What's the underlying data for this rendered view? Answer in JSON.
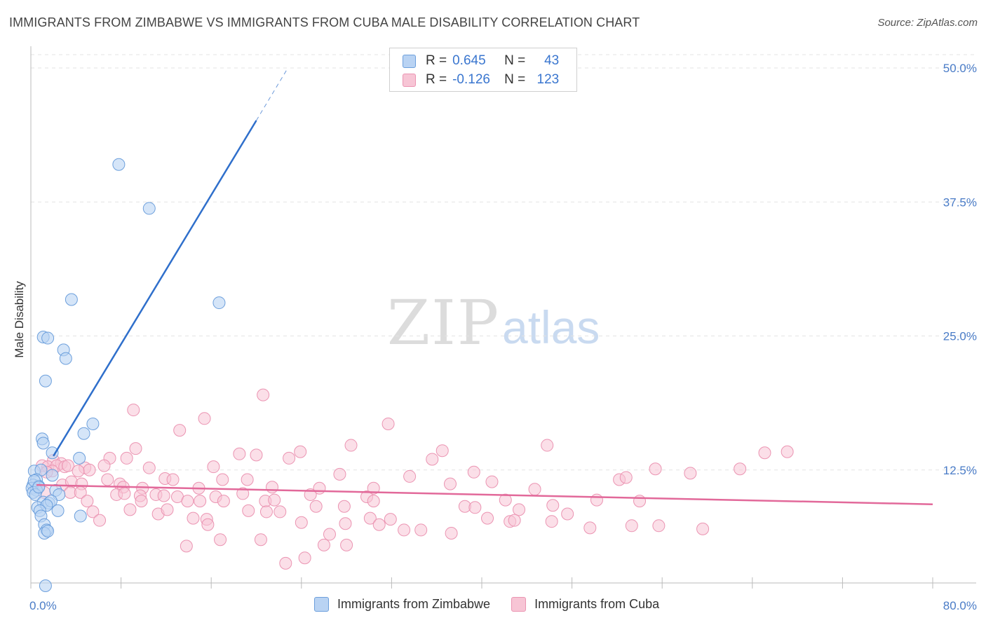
{
  "header": {
    "title": "IMMIGRANTS FROM ZIMBABWE VS IMMIGRANTS FROM CUBA MALE DISABILITY CORRELATION CHART",
    "source": "Source: ZipAtlas.com"
  },
  "watermark": {
    "zip": "ZIP",
    "atlas": "atlas"
  },
  "legend": {
    "r_label": "R =",
    "n_label": "N =",
    "rows": [
      {
        "r": "0.645",
        "n": "43"
      },
      {
        "r": "-0.126",
        "n": "123"
      }
    ]
  },
  "bottom_legend": {
    "items": [
      "Immigrants from Zimbabwe",
      "Immigrants from Cuba"
    ]
  },
  "colors": {
    "zimbabwe_fill": "#b9d3f3",
    "zimbabwe_stroke": "#6c9fdc",
    "zimbabwe_line": "#2f6fcb",
    "cuba_fill": "#f7c5d5",
    "cuba_stroke": "#eb94b2",
    "cuba_line": "#e2699a",
    "grid": "#e3e3e3",
    "tick_text": "#4a7cc7"
  },
  "chart_data": {
    "type": "scatter",
    "title": "IMMIGRANTS FROM ZIMBABWE VS IMMIGRANTS FROM CUBA MALE DISABILITY CORRELATION CHART",
    "xlabel": "",
    "ylabel": "Male Disability",
    "xlim": [
      0,
      80
    ],
    "ylim": [
      0,
      50
    ],
    "x_tick_labels": [
      "0.0%",
      "80.0%"
    ],
    "y_ticks": [
      12.5,
      25.0,
      37.5,
      50.0
    ],
    "y_tick_labels": [
      "12.5%",
      "25.0%",
      "37.5%",
      "50.0%"
    ],
    "grid": "horizontal dashed",
    "legend_position": "top-center",
    "series": [
      {
        "name": "Immigrants from Zimbabwe",
        "r": 0.645,
        "n": 43,
        "trend": {
          "x": [
            2.0,
            20.0
          ],
          "y": [
            13.8,
            45.1
          ],
          "dashed_extension_x": [
            20.0,
            22.8
          ],
          "dashed_extension_y": [
            45.1,
            50.0
          ]
        },
        "points": [
          [
            7.8,
            41.0
          ],
          [
            10.5,
            36.9
          ],
          [
            3.6,
            28.4
          ],
          [
            16.7,
            28.1
          ],
          [
            1.1,
            24.9
          ],
          [
            1.5,
            24.8
          ],
          [
            2.9,
            23.7
          ],
          [
            3.1,
            22.9
          ],
          [
            1.3,
            20.8
          ],
          [
            5.5,
            16.8
          ],
          [
            4.7,
            15.9
          ],
          [
            1.0,
            15.4
          ],
          [
            1.1,
            15.0
          ],
          [
            1.9,
            14.1
          ],
          [
            4.3,
            13.6
          ],
          [
            0.3,
            12.4
          ],
          [
            0.9,
            12.5
          ],
          [
            1.9,
            12.0
          ],
          [
            0.5,
            11.6
          ],
          [
            0.2,
            11.1
          ],
          [
            0.7,
            11.0
          ],
          [
            0.1,
            10.8
          ],
          [
            0.5,
            10.6
          ],
          [
            0.2,
            10.4
          ],
          [
            2.2,
            10.6
          ],
          [
            0.4,
            10.2
          ],
          [
            2.5,
            10.2
          ],
          [
            1.1,
            9.5
          ],
          [
            1.6,
            9.4
          ],
          [
            1.8,
            9.6
          ],
          [
            0.6,
            9.0
          ],
          [
            1.4,
            9.2
          ],
          [
            0.8,
            8.7
          ],
          [
            2.4,
            8.7
          ],
          [
            0.9,
            8.2
          ],
          [
            4.4,
            8.2
          ],
          [
            1.2,
            7.4
          ],
          [
            1.4,
            6.9
          ],
          [
            1.2,
            6.6
          ],
          [
            1.5,
            6.8
          ],
          [
            1.3,
            1.7
          ],
          [
            0.3,
            11.5
          ],
          [
            0.7,
            10.9
          ]
        ]
      },
      {
        "name": "Immigrants from Cuba",
        "r": -0.126,
        "n": 123,
        "trend": {
          "x": [
            0.5,
            80.0
          ],
          "y": [
            11.1,
            9.3
          ]
        },
        "points": [
          [
            20.6,
            19.5
          ],
          [
            9.1,
            18.1
          ],
          [
            15.4,
            17.3
          ],
          [
            31.7,
            16.8
          ],
          [
            13.2,
            16.2
          ],
          [
            28.4,
            14.8
          ],
          [
            45.8,
            14.8
          ],
          [
            9.3,
            14.5
          ],
          [
            23.9,
            14.2
          ],
          [
            36.5,
            14.3
          ],
          [
            65.1,
            14.1
          ],
          [
            67.1,
            14.2
          ],
          [
            18.5,
            14.0
          ],
          [
            20.0,
            13.9
          ],
          [
            7.0,
            13.6
          ],
          [
            8.5,
            13.6
          ],
          [
            22.9,
            13.6
          ],
          [
            35.6,
            13.5
          ],
          [
            2.0,
            13.4
          ],
          [
            2.7,
            13.1
          ],
          [
            1.0,
            12.9
          ],
          [
            1.5,
            12.8
          ],
          [
            2.3,
            12.9
          ],
          [
            3.0,
            12.8
          ],
          [
            3.3,
            12.9
          ],
          [
            4.8,
            12.7
          ],
          [
            6.5,
            12.9
          ],
          [
            10.5,
            12.7
          ],
          [
            16.2,
            12.8
          ],
          [
            5.2,
            12.5
          ],
          [
            4.2,
            12.4
          ],
          [
            1.9,
            12.4
          ],
          [
            1.4,
            12.3
          ],
          [
            55.4,
            12.6
          ],
          [
            58.5,
            12.2
          ],
          [
            62.9,
            12.6
          ],
          [
            27.4,
            12.1
          ],
          [
            33.6,
            11.9
          ],
          [
            39.3,
            12.3
          ],
          [
            6.8,
            11.6
          ],
          [
            11.9,
            11.7
          ],
          [
            12.6,
            11.6
          ],
          [
            17.0,
            11.6
          ],
          [
            19.2,
            11.6
          ],
          [
            7.9,
            11.2
          ],
          [
            2.8,
            11.1
          ],
          [
            3.6,
            11.4
          ],
          [
            4.5,
            11.2
          ],
          [
            8.2,
            10.9
          ],
          [
            9.9,
            10.8
          ],
          [
            14.9,
            10.8
          ],
          [
            21.4,
            10.9
          ],
          [
            25.6,
            10.8
          ],
          [
            30.4,
            10.8
          ],
          [
            37.2,
            11.2
          ],
          [
            40.9,
            11.4
          ],
          [
            44.7,
            10.7
          ],
          [
            52.2,
            11.6
          ],
          [
            52.8,
            11.8
          ],
          [
            1.2,
            10.4
          ],
          [
            3.5,
            10.4
          ],
          [
            4.4,
            10.4
          ],
          [
            7.6,
            10.2
          ],
          [
            8.3,
            10.3
          ],
          [
            9.7,
            10.1
          ],
          [
            11.1,
            10.2
          ],
          [
            11.8,
            10.1
          ],
          [
            13.0,
            10.0
          ],
          [
            16.4,
            10.0
          ],
          [
            18.8,
            10.3
          ],
          [
            24.8,
            10.2
          ],
          [
            29.8,
            10.0
          ],
          [
            5.0,
            9.6
          ],
          [
            9.8,
            9.6
          ],
          [
            13.9,
            9.6
          ],
          [
            15.0,
            9.6
          ],
          [
            17.1,
            9.6
          ],
          [
            20.8,
            9.6
          ],
          [
            21.6,
            9.7
          ],
          [
            30.4,
            9.6
          ],
          [
            42.1,
            9.7
          ],
          [
            50.2,
            9.7
          ],
          [
            54.0,
            9.6
          ],
          [
            25.3,
            9.1
          ],
          [
            27.8,
            9.1
          ],
          [
            38.5,
            9.1
          ],
          [
            39.4,
            9.0
          ],
          [
            46.3,
            9.2
          ],
          [
            5.5,
            8.6
          ],
          [
            8.8,
            8.8
          ],
          [
            11.3,
            8.4
          ],
          [
            12.1,
            8.8
          ],
          [
            19.3,
            8.7
          ],
          [
            20.9,
            8.6
          ],
          [
            22.1,
            8.6
          ],
          [
            43.3,
            8.8
          ],
          [
            47.6,
            8.4
          ],
          [
            14.4,
            8.0
          ],
          [
            15.6,
            7.9
          ],
          [
            30.1,
            8.0
          ],
          [
            31.9,
            7.9
          ],
          [
            40.5,
            8.0
          ],
          [
            46.2,
            7.7
          ],
          [
            6.1,
            7.8
          ],
          [
            15.7,
            7.4
          ],
          [
            24.0,
            7.6
          ],
          [
            27.9,
            7.5
          ],
          [
            30.9,
            7.4
          ],
          [
            42.5,
            7.7
          ],
          [
            42.9,
            7.8
          ],
          [
            49.6,
            7.1
          ],
          [
            53.3,
            7.3
          ],
          [
            55.7,
            7.3
          ],
          [
            59.6,
            7.0
          ],
          [
            33.1,
            6.9
          ],
          [
            34.6,
            6.9
          ],
          [
            37.3,
            6.6
          ],
          [
            26.5,
            6.5
          ],
          [
            16.8,
            6.0
          ],
          [
            20.4,
            6.0
          ],
          [
            13.8,
            5.4
          ],
          [
            26.0,
            5.5
          ],
          [
            28.0,
            5.5
          ],
          [
            24.3,
            4.3
          ],
          [
            22.6,
            3.8
          ]
        ]
      }
    ]
  }
}
